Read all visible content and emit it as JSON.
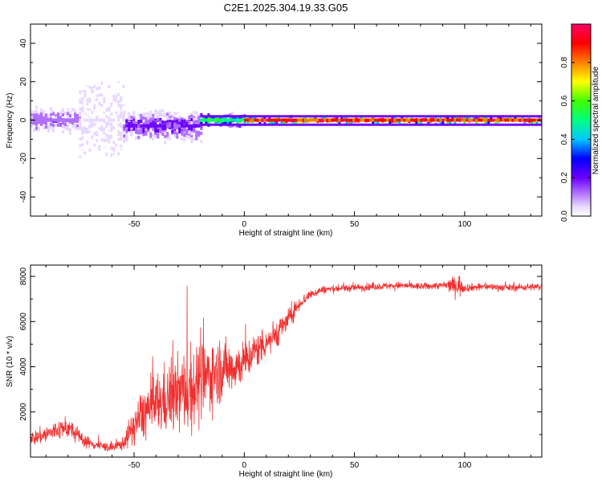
{
  "title": "C2E1.2025.304.19.33.G05",
  "chart_data": [
    {
      "type": "heatmap",
      "xlabel": "Height of straight line (km)",
      "ylabel": "Frequency (Hz)",
      "xlim": [
        -97,
        135
      ],
      "ylim": [
        -50,
        50
      ],
      "x_ticks": [
        -50,
        0,
        50,
        100
      ],
      "y_ticks": [
        -40,
        -20,
        0,
        20,
        40
      ],
      "colorbar": {
        "label": "Normalized spectral amplitude",
        "range": [
          0,
          1
        ],
        "ticks": [
          "0.0",
          "0.2",
          "0.4",
          "0.6",
          "0.8"
        ],
        "colormap": [
          "#ffffff",
          "#e8d8ff",
          "#b070ff",
          "#6a00ff",
          "#0000ff",
          "#00c8ff",
          "#00ff80",
          "#40ff00",
          "#ffff00",
          "#ff8000",
          "#ff0000",
          "#ff0066"
        ]
      },
      "regions": [
        {
          "x_range": [
            -97,
            -75
          ],
          "freq_center": 0,
          "freq_spread": 8,
          "peak_amplitude": 0.25
        },
        {
          "x_range": [
            -75,
            -55
          ],
          "freq_center": 0,
          "freq_spread": 50,
          "peak_amplitude": 0.1
        },
        {
          "x_range": [
            -55,
            -20
          ],
          "freq_center": -3,
          "freq_spread": 10,
          "peak_amplitude": 0.3
        },
        {
          "x_range": [
            -20,
            0
          ],
          "freq_center": 0,
          "freq_spread": 4,
          "peak_amplitude": 0.6
        },
        {
          "x_range": [
            0,
            135
          ],
          "freq_center": 0,
          "freq_spread": 2,
          "peak_amplitude": 0.95
        }
      ]
    },
    {
      "type": "line",
      "xlabel": "Height of straight line (km)",
      "ylabel": "SNR (10 * v/v)",
      "xlim": [
        -97,
        135
      ],
      "ylim": [
        0,
        8500
      ],
      "x_ticks": [
        -50,
        0,
        50,
        100
      ],
      "y_ticks": [
        2000,
        4000,
        6000,
        8000
      ],
      "series": [
        {
          "color": "#f03030",
          "x": [
            -97,
            -90,
            -85,
            -80,
            -75,
            -70,
            -65,
            -60,
            -55,
            -50,
            -45,
            -40,
            -35,
            -30,
            -25,
            -20,
            -15,
            -10,
            -5,
            0,
            5,
            10,
            15,
            20,
            25,
            30,
            35,
            40,
            50,
            60,
            70,
            80,
            90,
            98,
            100,
            110,
            120,
            135
          ],
          "y": [
            800,
            1000,
            1200,
            1300,
            900,
            600,
            500,
            400,
            600,
            1400,
            2000,
            2300,
            2600,
            2800,
            3000,
            3300,
            3700,
            3900,
            4000,
            4200,
            4700,
            5100,
            5500,
            6100,
            6800,
            7200,
            7400,
            7450,
            7500,
            7550,
            7600,
            7550,
            7600,
            7600,
            7500,
            7550,
            7500,
            7550
          ],
          "noise": [
            300,
            400,
            450,
            450,
            350,
            250,
            200,
            200,
            300,
            800,
            1200,
            1400,
            1500,
            1700,
            1900,
            1800,
            1600,
            1300,
            1100,
            900,
            800,
            700,
            600,
            450,
            300,
            200,
            180,
            170,
            160,
            160,
            160,
            160,
            160,
            500,
            180,
            160,
            160,
            160
          ]
        }
      ]
    }
  ]
}
